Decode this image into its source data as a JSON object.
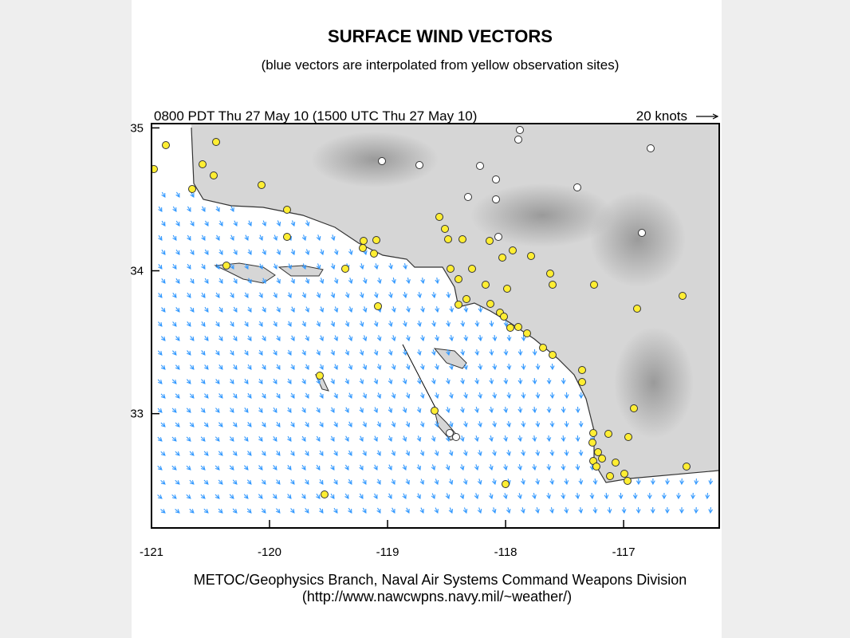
{
  "header": {
    "title": "SURFACE WIND VECTORS",
    "subtitle": "(blue vectors are interpolated from yellow observation sites)"
  },
  "map": {
    "timestamp": "0800 PDT Thu 27 May 10 (1500 UTC Thu 27 May 10)",
    "scale_label": "20 knots",
    "xlim": [
      -121,
      -116.19
    ],
    "ylim": [
      32.2,
      35.03
    ],
    "xticks": [
      -121,
      -120,
      -119,
      -118,
      -117
    ],
    "yticks": [
      33,
      34,
      35
    ]
  },
  "footer": {
    "line1": "METOC/Geophysics Branch, Naval Air Systems Command Weapons Division",
    "line2": "(http://www.nawcwpns.navy.mil/~weather/)"
  }
}
